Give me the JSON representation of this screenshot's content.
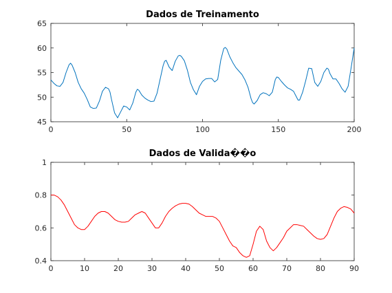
{
  "chart_data": [
    {
      "type": "line",
      "title": "Dados de Treinamento",
      "xlabel": "",
      "ylabel": "",
      "xlim": [
        0,
        200
      ],
      "ylim": [
        45,
        65
      ],
      "xticks": [
        0,
        50,
        100,
        150,
        200
      ],
      "yticks": [
        45,
        50,
        55,
        60,
        65
      ],
      "grid": false,
      "series": [
        {
          "color": "#0072BD",
          "x": [
            0,
            2,
            4,
            6,
            8,
            10,
            12,
            13,
            14,
            16,
            18,
            20,
            22,
            24,
            26,
            28,
            30,
            32,
            34,
            36,
            38,
            39,
            40,
            42,
            44,
            46,
            48,
            50,
            52,
            54,
            56,
            57,
            58,
            60,
            62,
            64,
            66,
            68,
            70,
            72,
            74,
            75,
            76,
            78,
            80,
            82,
            84,
            85,
            86,
            88,
            90,
            92,
            94,
            96,
            98,
            100,
            102,
            104,
            106,
            108,
            110,
            112,
            114,
            115,
            116,
            118,
            120,
            122,
            124,
            126,
            128,
            130,
            132,
            133,
            134,
            136,
            138,
            140,
            142,
            144,
            146,
            148,
            149,
            150,
            152,
            154,
            156,
            158,
            160,
            162,
            163,
            164,
            166,
            168,
            170,
            172,
            174,
            176,
            178,
            180,
            182,
            183,
            184,
            186,
            188,
            190,
            192,
            194,
            196,
            198,
            200
          ],
          "y": [
            53.5,
            52.8,
            52.3,
            52.2,
            53.0,
            55.0,
            56.6,
            56.9,
            56.5,
            55.0,
            53.0,
            51.7,
            50.8,
            49.5,
            48.0,
            47.7,
            47.8,
            49.2,
            51.2,
            52.0,
            51.7,
            51.0,
            49.5,
            46.8,
            45.8,
            47.0,
            48.2,
            48.0,
            47.4,
            48.8,
            51.0,
            51.6,
            51.4,
            50.4,
            49.8,
            49.4,
            49.1,
            49.2,
            50.8,
            53.6,
            56.4,
            57.3,
            57.5,
            56.1,
            55.4,
            57.3,
            58.4,
            58.5,
            58.3,
            57.4,
            55.5,
            53.0,
            51.5,
            50.5,
            52.2,
            53.2,
            53.7,
            53.8,
            53.8,
            53.1,
            53.6,
            57.5,
            59.9,
            60.1,
            59.8,
            58.2,
            57.0,
            56.0,
            55.3,
            54.6,
            53.5,
            52.0,
            49.7,
            48.9,
            48.6,
            49.3,
            50.5,
            50.9,
            50.7,
            50.3,
            51.0,
            53.6,
            54.1,
            54.0,
            53.2,
            52.5,
            51.9,
            51.6,
            51.2,
            50.0,
            49.4,
            49.4,
            51.0,
            53.3,
            55.9,
            55.8,
            53.0,
            52.2,
            53.2,
            55.0,
            55.9,
            55.7,
            54.8,
            53.7,
            53.7,
            52.8,
            51.7,
            51.0,
            52.2,
            56.0,
            60.0
          ]
        }
      ]
    },
    {
      "type": "line",
      "title": "Dados de Valida��o",
      "xlabel": "",
      "ylabel": "",
      "xlim": [
        0,
        90
      ],
      "ylim": [
        0.4,
        1
      ],
      "xticks": [
        0,
        10,
        20,
        30,
        40,
        50,
        60,
        70,
        80,
        90
      ],
      "yticks": [
        0.4,
        0.6,
        0.8,
        1
      ],
      "grid": false,
      "series": [
        {
          "color": "#FF0000",
          "x": [
            0,
            1,
            2,
            3,
            4,
            5,
            6,
            7,
            8,
            9,
            10,
            11,
            12,
            13,
            14,
            15,
            16,
            17,
            18,
            19,
            20,
            21,
            22,
            23,
            24,
            25,
            26,
            27,
            28,
            29,
            30,
            31,
            32,
            33,
            34,
            35,
            36,
            37,
            38,
            39,
            40,
            41,
            42,
            43,
            44,
            45,
            46,
            47,
            48,
            49,
            50,
            51,
            52,
            53,
            54,
            55,
            56,
            57,
            58,
            59,
            60,
            61,
            62,
            63,
            64,
            65,
            66,
            67,
            68,
            69,
            70,
            71,
            72,
            73,
            74,
            75,
            76,
            77,
            78,
            79,
            80,
            81,
            82,
            83,
            84,
            85,
            86,
            87,
            88,
            89,
            90
          ],
          "y": [
            0.8,
            0.8,
            0.79,
            0.77,
            0.74,
            0.7,
            0.66,
            0.62,
            0.6,
            0.59,
            0.59,
            0.61,
            0.64,
            0.67,
            0.69,
            0.7,
            0.7,
            0.69,
            0.67,
            0.65,
            0.64,
            0.635,
            0.635,
            0.64,
            0.66,
            0.68,
            0.69,
            0.7,
            0.69,
            0.66,
            0.63,
            0.6,
            0.6,
            0.63,
            0.67,
            0.7,
            0.72,
            0.735,
            0.745,
            0.75,
            0.75,
            0.745,
            0.73,
            0.71,
            0.69,
            0.68,
            0.67,
            0.67,
            0.67,
            0.66,
            0.64,
            0.6,
            0.56,
            0.52,
            0.49,
            0.48,
            0.45,
            0.43,
            0.42,
            0.43,
            0.5,
            0.58,
            0.61,
            0.59,
            0.52,
            0.48,
            0.46,
            0.48,
            0.51,
            0.54,
            0.58,
            0.6,
            0.62,
            0.62,
            0.615,
            0.61,
            0.59,
            0.57,
            0.55,
            0.535,
            0.53,
            0.535,
            0.56,
            0.61,
            0.66,
            0.7,
            0.72,
            0.73,
            0.725,
            0.715,
            0.69
          ]
        }
      ]
    }
  ]
}
